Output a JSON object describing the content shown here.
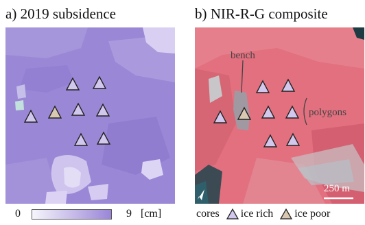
{
  "panel_a": {
    "title": "a) 2019 subsidence",
    "colorbar": {
      "min_label": "0",
      "max_label": "9",
      "unit": "[cm]",
      "color_low": "#f6f5fb",
      "color_high": "#9a86d8"
    }
  },
  "panel_b": {
    "title": "b) NIR-R-G composite",
    "annotations": {
      "bench": "bench",
      "polygons": "polygons"
    },
    "scale_bar": "250 m",
    "north_arrow_icon": "north-arrow-icon"
  },
  "legend": {
    "cores_label": "cores",
    "ice_rich_label": "ice rich",
    "ice_poor_label": "ice poor",
    "ice_rich_color": "#d2c8ee",
    "ice_poor_color": "#d9c9b2"
  }
}
